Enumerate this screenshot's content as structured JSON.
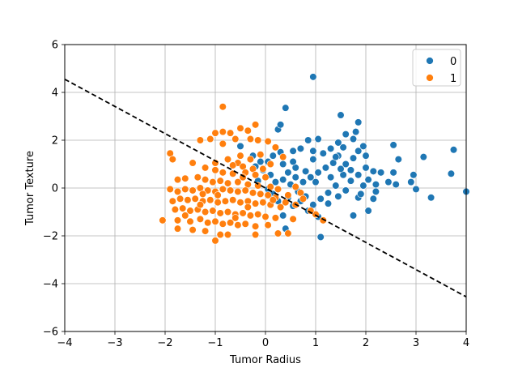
{
  "chart_data": {
    "type": "scatter",
    "xlabel": "Tumor Radius",
    "ylabel": "Tumor Texture",
    "xlim": [
      -4,
      4
    ],
    "ylim": [
      -6,
      6
    ],
    "xticks": [
      -4,
      -3,
      -2,
      -1,
      0,
      1,
      2,
      3,
      4
    ],
    "yticks": [
      -6,
      -4,
      -2,
      0,
      2,
      4,
      6
    ],
    "grid": true,
    "legend_position": "top-right",
    "series": [
      {
        "name": "0",
        "color": "#1f77b4",
        "points": [
          [
            0.95,
            4.65
          ],
          [
            1.5,
            3.05
          ],
          [
            1.85,
            2.75
          ],
          [
            0.4,
            3.35
          ],
          [
            0.25,
            2.45
          ],
          [
            0.3,
            2.65
          ],
          [
            1.8,
            2.35
          ],
          [
            1.6,
            2.25
          ],
          [
            1.75,
            2.05
          ],
          [
            0.85,
            2.0
          ],
          [
            1.05,
            2.05
          ],
          [
            1.45,
            1.9
          ],
          [
            1.95,
            1.75
          ],
          [
            2.55,
            1.8
          ],
          [
            2.65,
            1.2
          ],
          [
            3.15,
            1.3
          ],
          [
            3.75,
            1.6
          ],
          [
            2.0,
            1.35
          ],
          [
            1.85,
            1.55
          ],
          [
            1.55,
            1.7
          ],
          [
            1.3,
            1.65
          ],
          [
            0.95,
            1.55
          ],
          [
            0.7,
            1.65
          ],
          [
            0.55,
            1.55
          ],
          [
            0.3,
            1.5
          ],
          [
            0.15,
            1.35
          ],
          [
            0.05,
            1.1
          ],
          [
            -0.25,
            1.35
          ],
          [
            -0.1,
            1.1
          ],
          [
            0.35,
            1.0
          ],
          [
            0.6,
            0.85
          ],
          [
            0.8,
            0.7
          ],
          [
            0.9,
            0.45
          ],
          [
            1.05,
            0.65
          ],
          [
            1.2,
            0.85
          ],
          [
            1.35,
            1.05
          ],
          [
            1.45,
            1.35
          ],
          [
            1.6,
            1.0
          ],
          [
            1.7,
            0.75
          ],
          [
            1.85,
            0.55
          ],
          [
            2.0,
            0.85
          ],
          [
            2.15,
            0.7
          ],
          [
            2.3,
            0.65
          ],
          [
            2.05,
            0.35
          ],
          [
            2.2,
            0.15
          ],
          [
            2.45,
            0.25
          ],
          [
            2.55,
            0.65
          ],
          [
            2.95,
            0.55
          ],
          [
            2.9,
            0.25
          ],
          [
            3.7,
            0.6
          ],
          [
            4.0,
            -0.15
          ],
          [
            3.3,
            -0.4
          ],
          [
            2.15,
            -0.45
          ],
          [
            2.05,
            -0.95
          ],
          [
            1.75,
            -1.15
          ],
          [
            1.85,
            -0.4
          ],
          [
            1.6,
            -0.1
          ],
          [
            1.4,
            0.1
          ],
          [
            1.25,
            -0.2
          ],
          [
            1.1,
            -0.45
          ],
          [
            0.95,
            -0.7
          ],
          [
            0.8,
            -0.35
          ],
          [
            0.65,
            -0.15
          ],
          [
            0.5,
            0.15
          ],
          [
            0.35,
            0.35
          ],
          [
            0.2,
            0.25
          ],
          [
            0.1,
            0.55
          ],
          [
            -0.05,
            0.75
          ],
          [
            -0.2,
            0.9
          ],
          [
            0.45,
            -0.4
          ],
          [
            0.7,
            -0.55
          ],
          [
            0.85,
            -0.95
          ],
          [
            1.05,
            -1.2
          ],
          [
            1.1,
            -2.05
          ],
          [
            0.4,
            -1.7
          ],
          [
            0.35,
            -1.15
          ],
          [
            0.55,
            -0.75
          ],
          [
            0.25,
            -0.55
          ],
          [
            0.15,
            -0.25
          ],
          [
            0.05,
            -0.05
          ],
          [
            -0.15,
            0.3
          ],
          [
            1.3,
            0.45
          ],
          [
            1.55,
            0.55
          ],
          [
            1.7,
            0.3
          ],
          [
            1.95,
            0.1
          ],
          [
            1.45,
            -0.35
          ],
          [
            1.25,
            -0.65
          ],
          [
            1.0,
            0.25
          ],
          [
            0.75,
            0.25
          ],
          [
            0.6,
            0.45
          ],
          [
            0.45,
            0.65
          ],
          [
            -0.5,
            1.75
          ],
          [
            1.4,
            1.3
          ],
          [
            1.15,
            1.45
          ],
          [
            1.75,
            1.25
          ],
          [
            0.95,
            1.2
          ],
          [
            1.5,
            0.8
          ],
          [
            2.2,
            -0.15
          ],
          [
            2.6,
            0.15
          ],
          [
            3.0,
            -0.05
          ],
          [
            1.9,
            -0.25
          ],
          [
            0.55,
            1.1
          ]
        ]
      },
      {
        "name": "1",
        "color": "#ff7f0e",
        "points": [
          [
            -0.85,
            3.4
          ],
          [
            -0.85,
            2.35
          ],
          [
            -0.7,
            2.3
          ],
          [
            -0.5,
            2.5
          ],
          [
            -0.35,
            2.4
          ],
          [
            -0.2,
            2.65
          ],
          [
            -1.0,
            2.3
          ],
          [
            -1.3,
            2.0
          ],
          [
            -1.1,
            2.05
          ],
          [
            -0.6,
            2.05
          ],
          [
            -0.3,
            2.05
          ],
          [
            -0.15,
            2.0
          ],
          [
            0.05,
            1.95
          ],
          [
            -0.85,
            1.85
          ],
          [
            -1.9,
            1.45
          ],
          [
            -1.85,
            1.2
          ],
          [
            -1.45,
            1.05
          ],
          [
            -1.0,
            1.05
          ],
          [
            -0.75,
            1.2
          ],
          [
            -0.55,
            1.05
          ],
          [
            -0.45,
            0.9
          ],
          [
            -0.25,
            0.8
          ],
          [
            -0.05,
            0.8
          ],
          [
            -1.2,
            0.85
          ],
          [
            -1.0,
            0.75
          ],
          [
            -0.85,
            0.65
          ],
          [
            -0.65,
            0.6
          ],
          [
            -0.4,
            0.65
          ],
          [
            -0.2,
            0.55
          ],
          [
            0.0,
            0.45
          ],
          [
            -1.75,
            0.35
          ],
          [
            -1.6,
            0.4
          ],
          [
            -1.35,
            0.45
          ],
          [
            -1.2,
            0.35
          ],
          [
            -1.05,
            0.25
          ],
          [
            -0.9,
            0.3
          ],
          [
            -0.75,
            0.2
          ],
          [
            -0.55,
            0.25
          ],
          [
            -0.35,
            0.15
          ],
          [
            -0.15,
            0.1
          ],
          [
            0.1,
            0.05
          ],
          [
            0.25,
            -0.05
          ],
          [
            -1.9,
            -0.05
          ],
          [
            -1.75,
            -0.15
          ],
          [
            -1.6,
            -0.05
          ],
          [
            -1.45,
            -0.1
          ],
          [
            -1.3,
            0.0
          ],
          [
            -1.15,
            -0.1
          ],
          [
            -1.0,
            -0.15
          ],
          [
            -0.85,
            -0.05
          ],
          [
            -0.7,
            -0.1
          ],
          [
            -0.55,
            -0.15
          ],
          [
            -0.4,
            -0.1
          ],
          [
            -0.25,
            -0.2
          ],
          [
            -0.1,
            -0.25
          ],
          [
            0.05,
            -0.3
          ],
          [
            0.2,
            -0.4
          ],
          [
            0.4,
            -0.6
          ],
          [
            0.6,
            -0.7
          ],
          [
            -1.85,
            -0.55
          ],
          [
            -1.7,
            -0.45
          ],
          [
            -1.55,
            -0.5
          ],
          [
            -1.4,
            -0.45
          ],
          [
            -1.25,
            -0.55
          ],
          [
            -1.1,
            -0.5
          ],
          [
            -0.95,
            -0.6
          ],
          [
            -0.8,
            -0.55
          ],
          [
            -0.65,
            -0.5
          ],
          [
            -0.5,
            -0.6
          ],
          [
            -0.35,
            -0.55
          ],
          [
            -0.2,
            -0.65
          ],
          [
            -0.05,
            -0.6
          ],
          [
            0.1,
            -0.7
          ],
          [
            0.3,
            -0.8
          ],
          [
            -1.8,
            -0.9
          ],
          [
            -1.65,
            -0.85
          ],
          [
            -1.5,
            -0.95
          ],
          [
            -1.35,
            -0.9
          ],
          [
            -1.2,
            -1.0
          ],
          [
            -1.05,
            -0.95
          ],
          [
            -0.9,
            -1.05
          ],
          [
            -0.75,
            -1.0
          ],
          [
            -0.6,
            -1.1
          ],
          [
            -0.45,
            -1.05
          ],
          [
            -0.3,
            -1.15
          ],
          [
            -0.15,
            -1.1
          ],
          [
            0.0,
            -1.2
          ],
          [
            0.2,
            -1.25
          ],
          [
            -1.75,
            -1.35
          ],
          [
            -1.5,
            -1.4
          ],
          [
            -1.3,
            -1.3
          ],
          [
            -1.15,
            -1.45
          ],
          [
            -1.0,
            -1.4
          ],
          [
            -0.85,
            -1.5
          ],
          [
            -0.7,
            -1.45
          ],
          [
            -0.55,
            -1.55
          ],
          [
            -0.4,
            -1.5
          ],
          [
            -0.2,
            -1.6
          ],
          [
            0.05,
            -1.55
          ],
          [
            -2.05,
            -1.35
          ],
          [
            -1.75,
            -1.7
          ],
          [
            -1.45,
            -1.75
          ],
          [
            -1.2,
            -1.8
          ],
          [
            -0.9,
            -1.95
          ],
          [
            -0.75,
            -1.95
          ],
          [
            -0.2,
            -1.95
          ],
          [
            0.25,
            -1.9
          ],
          [
            0.45,
            -1.9
          ],
          [
            -1.0,
            -2.2
          ],
          [
            -0.6,
            -1.25
          ],
          [
            -0.95,
            -0.3
          ],
          [
            -1.25,
            -0.25
          ],
          [
            -0.45,
            0.45
          ],
          [
            -0.65,
            0.95
          ],
          [
            -0.3,
            1.2
          ],
          [
            0.1,
            1.0
          ],
          [
            -1.6,
            -1.15
          ],
          [
            -1.3,
            -0.7
          ],
          [
            -0.35,
            -0.8
          ],
          [
            0.15,
            -0.5
          ],
          [
            0.45,
            -0.3
          ],
          [
            0.7,
            -0.2
          ],
          [
            0.6,
            0.05
          ],
          [
            0.75,
            -0.45
          ],
          [
            1.0,
            -1.1
          ],
          [
            1.15,
            -1.35
          ],
          [
            0.9,
            -0.95
          ],
          [
            0.55,
            -1.3
          ],
          [
            -0.5,
            1.35
          ],
          [
            0.2,
            1.7
          ],
          [
            0.35,
            1.3
          ],
          [
            -0.1,
            1.4
          ]
        ]
      }
    ],
    "decision_line": {
      "style": "dashed",
      "color": "#000000",
      "points": [
        [
          -4,
          4.55
        ],
        [
          4,
          -4.55
        ]
      ]
    }
  }
}
